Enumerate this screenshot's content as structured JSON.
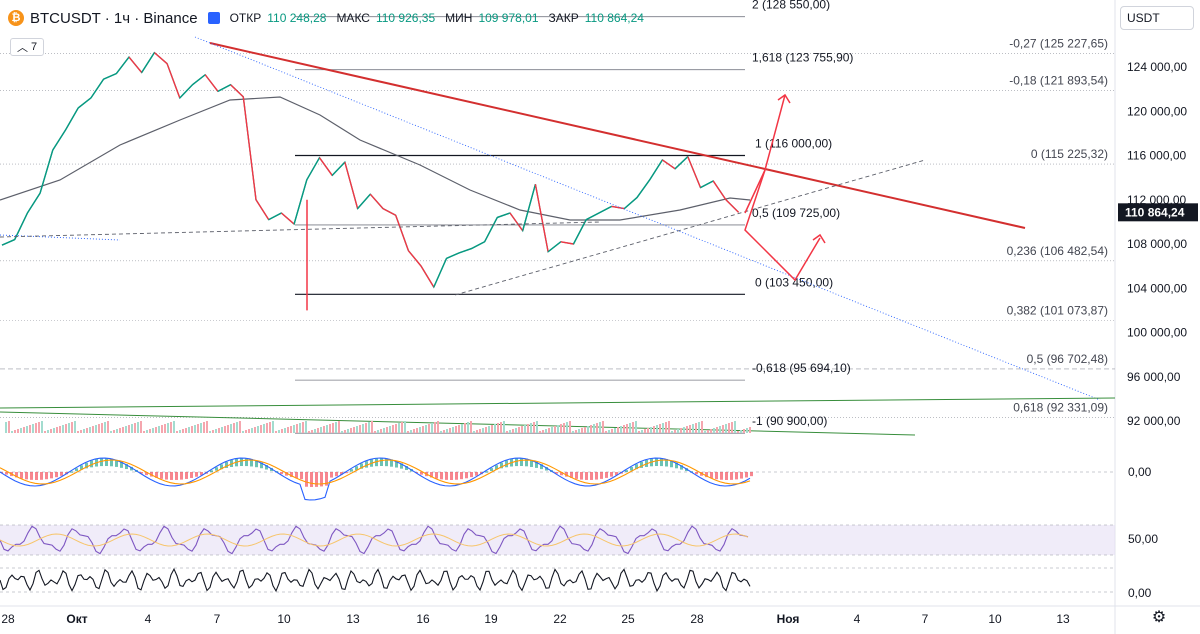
{
  "header": {
    "symbol": "BTCUSDT · 1ч · Binance",
    "coin_icon": "bitcoin-icon",
    "open_label": "ОТКР",
    "open_value": "110 248,28",
    "high_label": "МАКС",
    "high_value": "110 926,35",
    "low_label": "МИН",
    "low_value": "109 978,01",
    "close_label": "ЗАКР",
    "close_value": "110 864,24"
  },
  "indicators_toggle": "7",
  "currency": "USDT",
  "colors": {
    "up": "#089981",
    "down": "#f23645",
    "trend_red": "#d32f2f",
    "ma": "#5d606b",
    "blue_dotted": "#2962ff",
    "rsi_band": "#e6e0f5"
  },
  "chart_data": {
    "type": "line",
    "price_axis_ticks": [
      "124 000,00",
      "120 000,00",
      "116 000,00",
      "112 000,00",
      "108 000,00",
      "104 000,00",
      "100 000,00",
      "96 000,00",
      "92 000,00"
    ],
    "current_price": "110 864,24",
    "time_ticks": [
      "28",
      "Окт",
      "4",
      "7",
      "10",
      "13",
      "16",
      "19",
      "22",
      "25",
      "28",
      "Ноя",
      "4",
      "7",
      "10",
      "13"
    ],
    "price_series": [
      {
        "t": 0,
        "p": 107900
      },
      {
        "t": 1,
        "p": 108400
      },
      {
        "t": 2,
        "p": 110800
      },
      {
        "t": 3,
        "p": 112600
      },
      {
        "t": 4,
        "p": 116500
      },
      {
        "t": 5,
        "p": 118300
      },
      {
        "t": 6,
        "p": 120300
      },
      {
        "t": 7,
        "p": 121200
      },
      {
        "t": 8,
        "p": 122900
      },
      {
        "t": 9,
        "p": 123400
      },
      {
        "t": 10,
        "p": 124900
      },
      {
        "t": 11,
        "p": 123500
      },
      {
        "t": 12,
        "p": 125300
      },
      {
        "t": 13,
        "p": 124300
      },
      {
        "t": 14,
        "p": 121200
      },
      {
        "t": 15,
        "p": 122400
      },
      {
        "t": 16,
        "p": 123300
      },
      {
        "t": 17,
        "p": 121800
      },
      {
        "t": 18,
        "p": 122400
      },
      {
        "t": 19,
        "p": 121300
      },
      {
        "t": 20,
        "p": 112000
      },
      {
        "t": 21,
        "p": 110200
      },
      {
        "t": 22,
        "p": 110800
      },
      {
        "t": 23,
        "p": 109800
      },
      {
        "t": 24,
        "p": 113800
      },
      {
        "t": 25,
        "p": 115800
      },
      {
        "t": 26,
        "p": 114200
      },
      {
        "t": 27,
        "p": 115400
      },
      {
        "t": 28,
        "p": 111200
      },
      {
        "t": 29,
        "p": 112500
      },
      {
        "t": 30,
        "p": 111200
      },
      {
        "t": 31,
        "p": 110600
      },
      {
        "t": 32,
        "p": 107400
      },
      {
        "t": 33,
        "p": 106000
      },
      {
        "t": 34,
        "p": 104100
      },
      {
        "t": 35,
        "p": 106700
      },
      {
        "t": 36,
        "p": 107200
      },
      {
        "t": 37,
        "p": 107600
      },
      {
        "t": 38,
        "p": 108200
      },
      {
        "t": 39,
        "p": 110400
      },
      {
        "t": 40,
        "p": 110800
      },
      {
        "t": 41,
        "p": 109200
      },
      {
        "t": 42,
        "p": 113400
      },
      {
        "t": 43,
        "p": 107300
      },
      {
        "t": 44,
        "p": 108200
      },
      {
        "t": 45,
        "p": 108000
      },
      {
        "t": 46,
        "p": 110200
      },
      {
        "t": 47,
        "p": 110800
      },
      {
        "t": 48,
        "p": 111400
      },
      {
        "t": 49,
        "p": 111200
      },
      {
        "t": 50,
        "p": 112200
      },
      {
        "t": 51,
        "p": 113800
      },
      {
        "t": 52,
        "p": 115600
      },
      {
        "t": 53,
        "p": 114800
      },
      {
        "t": 54,
        "p": 115900
      },
      {
        "t": 55,
        "p": 113100
      },
      {
        "t": 56,
        "p": 113700
      },
      {
        "t": 57,
        "p": 112000
      },
      {
        "t": 58,
        "p": 110864
      }
    ],
    "fib_levels": [
      {
        "label": "2 (128 550,00)",
        "p": 128550
      },
      {
        "label": "1,618 (123 755,90)",
        "p": 123755
      },
      {
        "label": "1 (116 000,00)",
        "p": 116000
      },
      {
        "label": "0,5 (109 725,00)",
        "p": 109725
      },
      {
        "label": "0 (103 450,00)",
        "p": 103450
      },
      {
        "label": "-0,618 (95 694,10)",
        "p": 95694
      },
      {
        "label": "-1 (90 900,00)",
        "p": 90900
      }
    ],
    "fib_right_levels": [
      {
        "label": "-0,27 (125 227,65)",
        "p": 125227
      },
      {
        "label": "-0,18 (121 893,54)",
        "p": 121893
      },
      {
        "label": "0 (115 225,32)",
        "p": 115225
      },
      {
        "label": "0,236 (106 482,54)",
        "p": 106482
      },
      {
        "label": "0,382 (101 073,87)",
        "p": 101073
      },
      {
        "label": "0,5 (96 702,48)",
        "p": 96702
      },
      {
        "label": "0,618 (92 331,09)",
        "p": 92331
      }
    ],
    "macd_axis_label": "0,00",
    "rsi_axis_label": "50,00",
    "stoch_axis_label": "0,00"
  }
}
